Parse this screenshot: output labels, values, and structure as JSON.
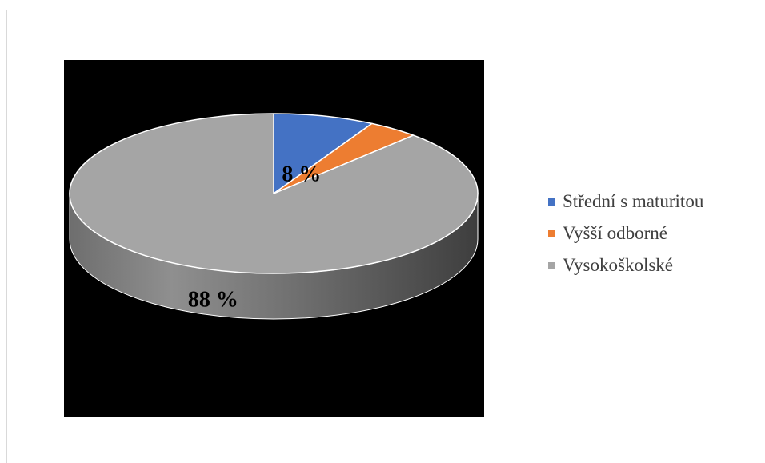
{
  "chart_data": {
    "type": "pie",
    "title": "",
    "categories": [
      "Střední s maturitou",
      "Vyšší odborné",
      "Vysokoškolské"
    ],
    "values": [
      8,
      4,
      88
    ],
    "data_labels": [
      "8 %",
      "",
      "88 %"
    ],
    "colors": [
      "#4472C4",
      "#ED7D31",
      "#A5A5A5"
    ],
    "legend_position": "right",
    "style": "3d-pie"
  }
}
